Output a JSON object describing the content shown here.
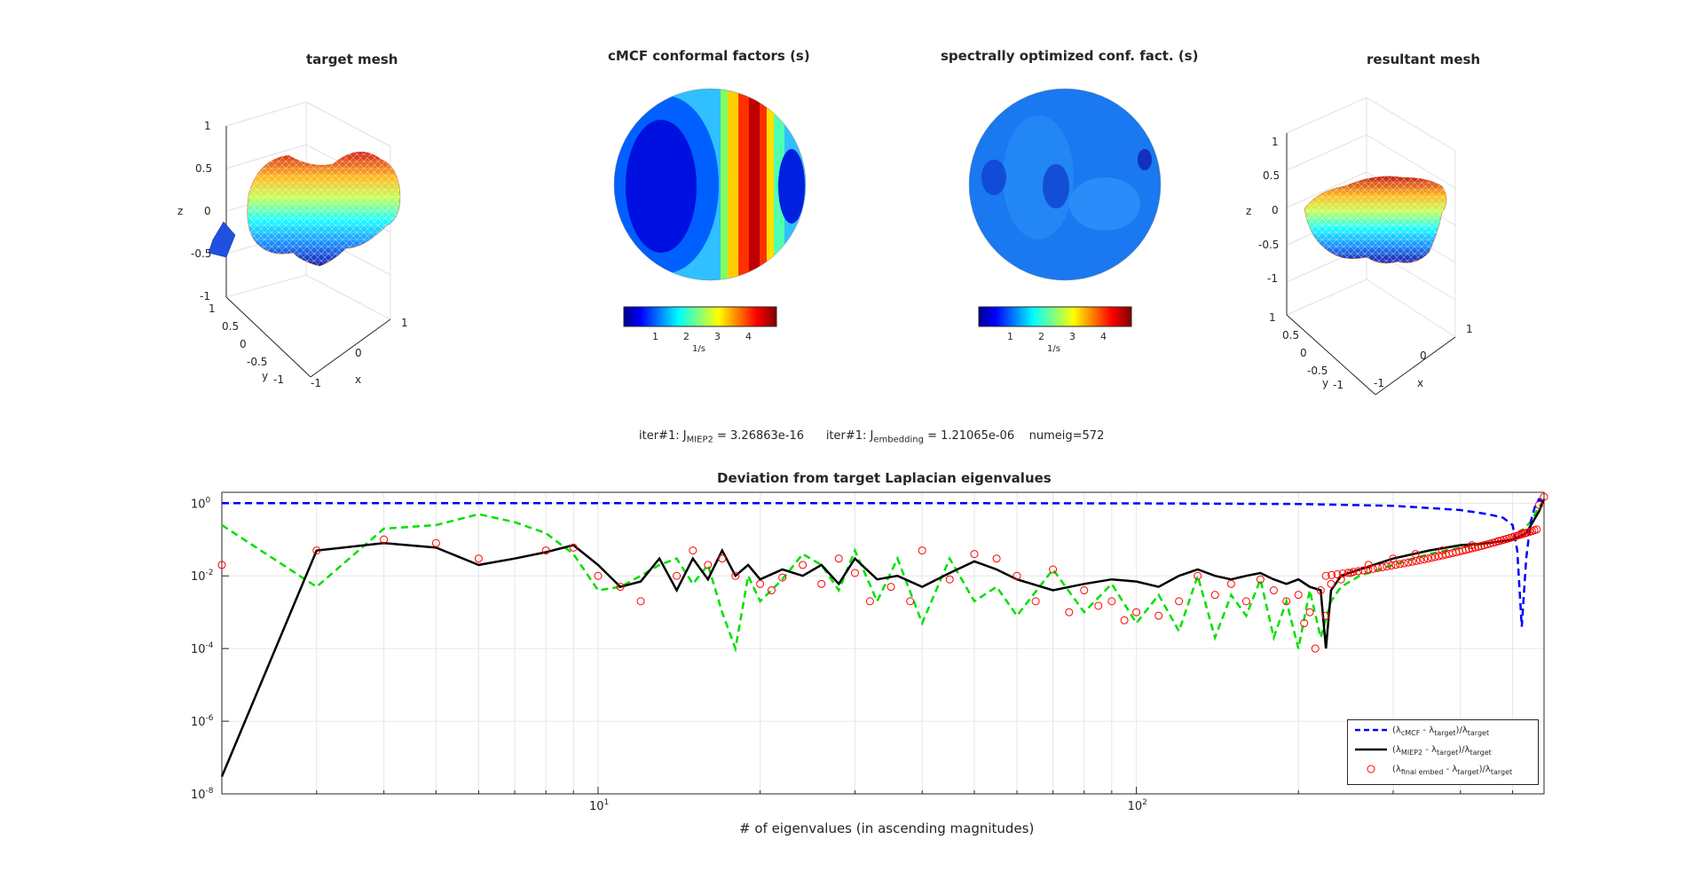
{
  "top_panels": {
    "target_mesh": {
      "title": "target mesh",
      "xlabel": "x",
      "ylabel": "y",
      "zlabel": "z",
      "z_ticks": [
        "1",
        "0.5",
        "0",
        "-0.5",
        "-1"
      ],
      "y_ticks": [
        "1",
        "0.5",
        "0",
        "-0.5",
        "-1"
      ],
      "x_ticks": [
        "1",
        "0",
        "-1"
      ]
    },
    "cmcf_factors": {
      "title": "cMCF conformal factors (s)",
      "colorbar_ticks": [
        "1",
        "2",
        "3",
        "4"
      ],
      "colorbar_unit": "1/s"
    },
    "spectral_factors": {
      "title": "spectrally optimized conf. fact. (s)",
      "colorbar_ticks": [
        "1",
        "2",
        "3",
        "4"
      ],
      "colorbar_unit": "1/s"
    },
    "resultant_mesh": {
      "title": "resultant mesh",
      "xlabel": "x",
      "ylabel": "y",
      "zlabel": "z",
      "z_ticks": [
        "1",
        "0.5",
        "0",
        "-0.5",
        "-1"
      ],
      "y_ticks": [
        "1",
        "0.5",
        "0",
        "-0.5",
        "-1"
      ],
      "x_ticks": [
        "1",
        "0",
        "-1"
      ]
    }
  },
  "info": {
    "iter1": "iter#1: J",
    "miep2_sub": "MIEP2",
    "miep2_val": " = 3.26863e-16",
    "iter2": "iter#1: J",
    "emb_sub": "embedding",
    "emb_val": " = 1.21065e-06",
    "numeig": "numeig=572"
  },
  "chart_data": {
    "type": "line",
    "title": "Deviation from target Laplacian eigenvalues",
    "xlabel": "# of eigenvalues (in ascending magnitudes)",
    "ylabel": "",
    "xscale": "log",
    "yscale": "log",
    "xlim": [
      2,
      572
    ],
    "ylim": [
      1e-08,
      2
    ],
    "x_tick_labels": [
      {
        "base": "10",
        "exp": "1"
      },
      {
        "base": "10",
        "exp": "2"
      }
    ],
    "y_tick_labels": [
      {
        "base": "10",
        "exp": "0"
      },
      {
        "base": "10",
        "exp": "-2"
      },
      {
        "base": "10",
        "exp": "-4"
      },
      {
        "base": "10",
        "exp": "-6"
      },
      {
        "base": "10",
        "exp": "-8"
      }
    ],
    "grid": true,
    "legend_position": "bottom-right",
    "series": [
      {
        "label_parts": [
          "(λ",
          "cMCF",
          " - λ",
          "target",
          ")/λ",
          "target"
        ],
        "color": "#0000ff",
        "style": "dashed",
        "x": [
          2,
          10,
          50,
          100,
          200,
          300,
          400,
          450,
          480,
          500,
          510,
          520,
          530,
          540,
          550,
          560,
          572
        ],
        "y": [
          1.0,
          1.0,
          1.0,
          0.99,
          0.95,
          0.85,
          0.65,
          0.5,
          0.4,
          0.25,
          0.05,
          0.0004,
          0.03,
          0.3,
          0.8,
          1.3,
          1.0
        ]
      },
      {
        "label_parts": [
          "(λ",
          "MIEP2",
          " - λ",
          "target",
          ")/λ",
          "target"
        ],
        "color": "#000000",
        "style": "solid",
        "x": [
          2,
          3,
          4,
          5,
          6,
          7,
          8,
          9,
          10,
          11,
          12,
          13,
          14,
          15,
          16,
          17,
          18,
          19,
          20,
          22,
          24,
          26,
          28,
          30,
          33,
          36,
          40,
          45,
          50,
          55,
          60,
          70,
          80,
          90,
          100,
          110,
          120,
          130,
          140,
          150,
          160,
          170,
          180,
          190,
          200,
          210,
          220,
          225,
          230,
          240,
          260,
          300,
          350,
          400,
          450,
          500,
          530,
          560,
          572
        ],
        "y": [
          3e-08,
          0.05,
          0.08,
          0.06,
          0.02,
          0.03,
          0.045,
          0.07,
          0.02,
          0.005,
          0.007,
          0.03,
          0.004,
          0.03,
          0.008,
          0.05,
          0.01,
          0.02,
          0.008,
          0.015,
          0.01,
          0.02,
          0.006,
          0.03,
          0.008,
          0.01,
          0.005,
          0.012,
          0.025,
          0.015,
          0.008,
          0.004,
          0.006,
          0.008,
          0.007,
          0.005,
          0.01,
          0.015,
          0.01,
          0.008,
          0.01,
          0.012,
          0.008,
          0.006,
          0.008,
          0.005,
          0.004,
          0.0001,
          0.004,
          0.01,
          0.015,
          0.03,
          0.05,
          0.07,
          0.08,
          0.1,
          0.15,
          0.6,
          1.3
        ]
      },
      {
        "label_parts": [
          "(λ",
          "final embed",
          " - λ",
          "target",
          ")/λ",
          "target"
        ],
        "color": "#ff0000",
        "style": "circles",
        "x": [
          2,
          3,
          4,
          5,
          6,
          8,
          9,
          10,
          11,
          12,
          14,
          15,
          16,
          17,
          18,
          20,
          21,
          22,
          24,
          26,
          28,
          30,
          32,
          35,
          38,
          40,
          45,
          50,
          55,
          60,
          65,
          70,
          75,
          80,
          85,
          90,
          95,
          100,
          110,
          120,
          130,
          140,
          150,
          160,
          170,
          180,
          190,
          200,
          205,
          210,
          215,
          220,
          225,
          230,
          240,
          250,
          270,
          300,
          330,
          370,
          420,
          470,
          520,
          560,
          572
        ],
        "y": [
          0.02,
          0.05,
          0.1,
          0.08,
          0.03,
          0.05,
          0.06,
          0.01,
          0.005,
          0.002,
          0.01,
          0.05,
          0.02,
          0.03,
          0.01,
          0.006,
          0.004,
          0.009,
          0.02,
          0.006,
          0.03,
          0.012,
          0.002,
          0.005,
          0.002,
          0.05,
          0.008,
          0.04,
          0.03,
          0.01,
          0.002,
          0.015,
          0.001,
          0.004,
          0.0015,
          0.002,
          0.0006,
          0.001,
          0.0008,
          0.002,
          0.01,
          0.003,
          0.006,
          0.002,
          0.008,
          0.004,
          0.002,
          0.003,
          0.0005,
          0.001,
          0.0001,
          0.004,
          0.0008,
          0.006,
          0.008,
          0.012,
          0.02,
          0.03,
          0.04,
          0.05,
          0.07,
          0.09,
          0.15,
          0.9,
          1.5
        ]
      },
      {
        "color": "#00e000",
        "style": "dashed",
        "x": [
          2,
          3,
          4,
          5,
          6,
          7,
          8,
          9,
          10,
          11,
          12,
          13,
          14,
          15,
          16,
          17,
          18,
          19,
          20,
          22,
          24,
          26,
          28,
          30,
          33,
          36,
          40,
          45,
          50,
          55,
          60,
          70,
          80,
          90,
          100,
          110,
          120,
          130,
          140,
          150,
          160,
          170,
          180,
          190,
          200,
          210,
          220,
          230,
          240,
          260,
          300,
          350,
          400,
          450,
          500,
          540,
          560,
          572
        ],
        "y": [
          0.25,
          0.005,
          0.2,
          0.25,
          0.5,
          0.3,
          0.15,
          0.04,
          0.004,
          0.005,
          0.01,
          0.02,
          0.03,
          0.006,
          0.02,
          0.001,
          0.0001,
          0.01,
          0.002,
          0.008,
          0.04,
          0.02,
          0.004,
          0.05,
          0.002,
          0.03,
          0.0005,
          0.03,
          0.002,
          0.005,
          0.0008,
          0.015,
          0.001,
          0.006,
          0.0005,
          0.003,
          0.0003,
          0.01,
          0.0002,
          0.003,
          0.0008,
          0.008,
          0.0002,
          0.002,
          0.0001,
          0.004,
          0.0002,
          0.002,
          0.005,
          0.01,
          0.02,
          0.04,
          0.06,
          0.08,
          0.1,
          0.3,
          0.8,
          1.2
        ]
      }
    ]
  }
}
